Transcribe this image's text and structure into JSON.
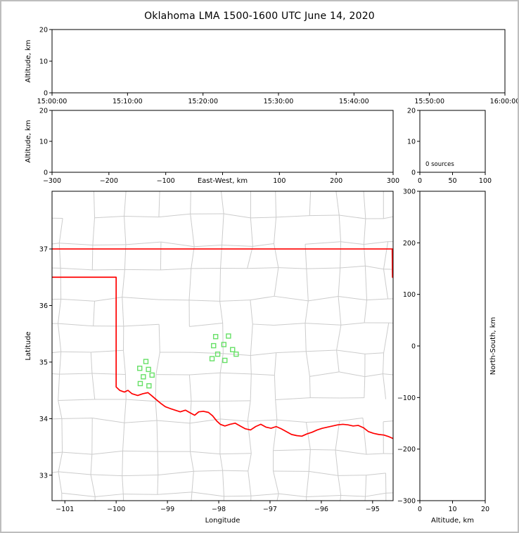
{
  "window": {
    "title": "Oklahoma LMA 1500-1600 UTC June 14, 2020"
  },
  "colors": {
    "background": "#ffffff",
    "page_border": "#bdbdbd",
    "axis": "#000000",
    "county_line": "#cccccc",
    "state_border": "#ff0000",
    "station_marker": "#66e066"
  },
  "chart_data": [
    {
      "id": "time_height",
      "type": "scatter",
      "ylabel": "Altitude, km",
      "xlim": [
        0,
        3600
      ],
      "xticks": [
        0,
        600,
        1200,
        1800,
        2400,
        3000,
        3600
      ],
      "xtick_labels": [
        "15:00:00",
        "15:10:00",
        "15:20:00",
        "15:30:00",
        "15:40:00",
        "15:50:00",
        "16:00:00"
      ],
      "ylim": [
        0,
        20
      ],
      "yticks": [
        0,
        10,
        20
      ],
      "points": []
    },
    {
      "id": "ew_height",
      "type": "scatter",
      "xlabel": "East-West, km",
      "xlabel_replaces_zero": true,
      "ylabel": "Altitude, km",
      "xlim": [
        -300,
        300
      ],
      "xticks": [
        -300,
        -200,
        -100,
        0,
        100,
        200,
        300
      ],
      "ylim": [
        0,
        20
      ],
      "yticks": [
        0,
        10,
        20
      ],
      "points": []
    },
    {
      "id": "alt_histogram",
      "type": "line",
      "xlim": [
        0,
        100
      ],
      "xticks": [
        0,
        50,
        100
      ],
      "ylim": [
        0,
        20
      ],
      "yticks": [
        0,
        10,
        20
      ],
      "annotation": "0 sources",
      "points": []
    },
    {
      "id": "plan_map",
      "type": "scatter",
      "xlabel": "Longitude",
      "ylabel": "Latitude",
      "xlim": [
        -101.25,
        -94.6
      ],
      "xticks": [
        -101,
        -100,
        -99,
        -98,
        -97,
        -96,
        -95
      ],
      "ylim": [
        32.55,
        38.02
      ],
      "yticks": [
        33,
        34,
        35,
        36,
        37
      ],
      "stations": [
        [
          -98.06,
          35.45
        ],
        [
          -97.81,
          35.46
        ],
        [
          -98.1,
          35.29
        ],
        [
          -97.9,
          35.31
        ],
        [
          -97.73,
          35.22
        ],
        [
          -98.02,
          35.14
        ],
        [
          -98.13,
          35.06
        ],
        [
          -97.88,
          35.03
        ],
        [
          -97.66,
          35.14
        ],
        [
          -99.42,
          35.01
        ],
        [
          -99.54,
          34.89
        ],
        [
          -99.37,
          34.87
        ],
        [
          -99.3,
          34.77
        ],
        [
          -99.47,
          34.74
        ],
        [
          -99.53,
          34.62
        ],
        [
          -99.36,
          34.58
        ]
      ],
      "state_border_segments": [
        [
          [
            -101.25,
            37.0
          ],
          [
            -94.58,
            37.0
          ]
        ],
        [
          [
            -94.618,
            37.0
          ],
          [
            -94.612,
            36.5
          ],
          [
            -94.58,
            36.49
          ]
        ],
        [
          [
            -101.25,
            36.5
          ],
          [
            -100.0,
            36.5
          ],
          [
            -100.0,
            34.56
          ],
          [
            -99.93,
            34.5
          ],
          [
            -99.84,
            34.47
          ],
          [
            -99.77,
            34.5
          ],
          [
            -99.69,
            34.44
          ],
          [
            -99.58,
            34.41
          ],
          [
            -99.48,
            34.44
          ],
          [
            -99.38,
            34.46
          ],
          [
            -99.3,
            34.4
          ],
          [
            -99.21,
            34.33
          ],
          [
            -99.13,
            34.27
          ],
          [
            -99.04,
            34.21
          ],
          [
            -98.95,
            34.18
          ],
          [
            -98.85,
            34.15
          ],
          [
            -98.75,
            34.12
          ],
          [
            -98.65,
            34.15
          ],
          [
            -98.55,
            34.1
          ],
          [
            -98.47,
            34.06
          ],
          [
            -98.39,
            34.12
          ],
          [
            -98.3,
            34.13
          ],
          [
            -98.2,
            34.11
          ],
          [
            -98.12,
            34.05
          ],
          [
            -98.04,
            33.96
          ],
          [
            -97.97,
            33.9
          ],
          [
            -97.88,
            33.87
          ],
          [
            -97.78,
            33.9
          ],
          [
            -97.68,
            33.92
          ],
          [
            -97.58,
            33.87
          ],
          [
            -97.48,
            33.82
          ],
          [
            -97.38,
            33.8
          ],
          [
            -97.28,
            33.86
          ],
          [
            -97.18,
            33.9
          ],
          [
            -97.08,
            33.85
          ],
          [
            -96.98,
            33.83
          ],
          [
            -96.88,
            33.86
          ],
          [
            -96.78,
            33.82
          ],
          [
            -96.68,
            33.77
          ],
          [
            -96.58,
            33.72
          ],
          [
            -96.48,
            33.7
          ],
          [
            -96.38,
            33.69
          ],
          [
            -96.28,
            33.73
          ],
          [
            -96.18,
            33.76
          ],
          [
            -96.08,
            33.8
          ],
          [
            -95.98,
            33.83
          ],
          [
            -95.88,
            33.85
          ],
          [
            -95.78,
            33.87
          ],
          [
            -95.68,
            33.89
          ],
          [
            -95.58,
            33.9
          ],
          [
            -95.48,
            33.89
          ],
          [
            -95.38,
            33.87
          ],
          [
            -95.28,
            33.88
          ],
          [
            -95.18,
            33.84
          ],
          [
            -95.08,
            33.77
          ],
          [
            -94.98,
            33.74
          ],
          [
            -94.88,
            33.72
          ],
          [
            -94.78,
            33.71
          ],
          [
            -94.68,
            33.68
          ],
          [
            -94.58,
            33.64
          ]
        ]
      ]
    },
    {
      "id": "ns_height",
      "type": "scatter",
      "xlabel": "Altitude, km",
      "ylabel_right": "North-South, km",
      "xlim": [
        0,
        20
      ],
      "xticks": [
        0,
        10,
        20
      ],
      "ylim": [
        -300,
        300
      ],
      "yticks": [
        -300,
        -200,
        -100,
        0,
        100,
        200,
        300
      ],
      "points": []
    }
  ]
}
